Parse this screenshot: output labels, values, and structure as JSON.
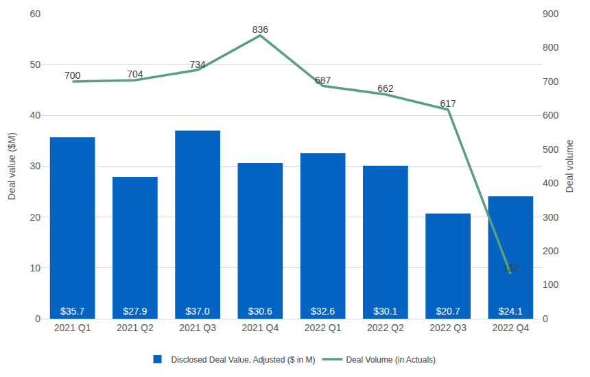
{
  "chart_data": {
    "type": "bar",
    "categories": [
      "2021 Q1",
      "2021 Q2",
      "2021 Q3",
      "2021 Q4",
      "2022 Q1",
      "2022 Q2",
      "2022 Q3",
      "2022 Q4"
    ],
    "series": [
      {
        "name": "Disclosed Deal Value, Adjusted ($ in M)",
        "type": "bar",
        "color": "#0563c1",
        "values": [
          35.7,
          27.9,
          37.0,
          30.6,
          32.6,
          30.1,
          20.7,
          24.1
        ],
        "value_labels": [
          "$35.7",
          "$27.9",
          "$37.0",
          "$30.6",
          "$32.6",
          "$30.1",
          "$20.7",
          "$24.1"
        ]
      },
      {
        "name": "Deal Volume (in Actuals)",
        "type": "line",
        "axis": "y2",
        "color": "#5b9e80",
        "values": [
          700,
          704,
          734,
          836,
          687,
          662,
          617,
          132
        ]
      }
    ],
    "y_label": "Deal value ($M)",
    "y2_label": "Deal volume",
    "ylim": [
      0,
      60
    ],
    "yticks": [
      0,
      10,
      20,
      30,
      40,
      50,
      60
    ],
    "y2lim": [
      0,
      900
    ],
    "y2ticks": [
      0,
      100,
      200,
      300,
      400,
      500,
      600,
      700,
      800,
      900
    ],
    "grid": true,
    "legend": "bottom",
    "data_labels": true
  }
}
